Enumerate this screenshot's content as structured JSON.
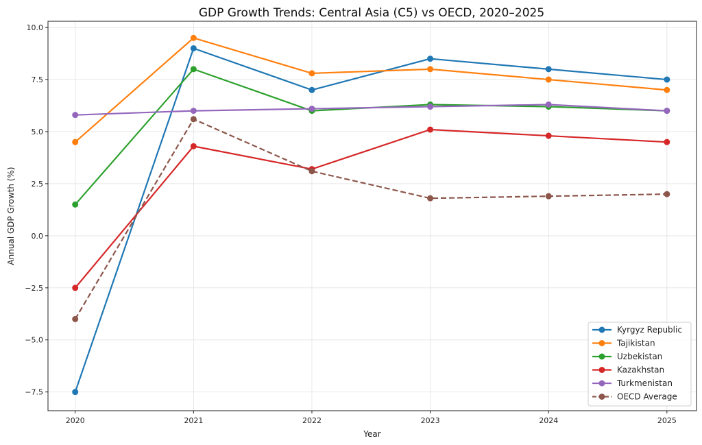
{
  "chart_data": {
    "type": "line",
    "title": "GDP Growth Trends: Central Asia (C5) vs OECD, 2020–2025",
    "xlabel": "Year",
    "ylabel": "Annual GDP Growth (%)",
    "x": [
      2020,
      2021,
      2022,
      2023,
      2024,
      2025
    ],
    "x_tick_labels": [
      "2020",
      "2021",
      "2022",
      "2023",
      "2024",
      "2025"
    ],
    "y_ticks": [
      -7.5,
      -5.0,
      -2.5,
      0.0,
      2.5,
      5.0,
      7.5,
      10.0
    ],
    "y_tick_labels": [
      "−7.5",
      "−5.0",
      "−2.5",
      "0.0",
      "2.5",
      "5.0",
      "7.5",
      "10.0"
    ],
    "ylim": [
      -8.4,
      10.3
    ],
    "xlim": [
      2019.77,
      2025.25
    ],
    "grid": true,
    "legend_position": "bottom-right",
    "series": [
      {
        "name": "Kyrgyz Republic",
        "color": "#1f77b4",
        "dashed": false,
        "values": [
          -7.5,
          9.0,
          7.0,
          8.5,
          8.0,
          7.5
        ]
      },
      {
        "name": "Tajikistan",
        "color": "#ff7f0e",
        "dashed": false,
        "values": [
          4.5,
          9.5,
          7.8,
          8.0,
          7.5,
          7.0
        ]
      },
      {
        "name": "Uzbekistan",
        "color": "#2ca02c",
        "dashed": false,
        "values": [
          1.5,
          8.0,
          6.0,
          6.3,
          6.2,
          6.0
        ]
      },
      {
        "name": "Kazakhstan",
        "color": "#d62728",
        "dashed": false,
        "values": [
          -2.5,
          4.3,
          3.2,
          5.1,
          4.8,
          4.5
        ]
      },
      {
        "name": "Turkmenistan",
        "color": "#9467bd",
        "dashed": false,
        "values": [
          5.8,
          6.0,
          6.1,
          6.2,
          6.3,
          6.0
        ]
      },
      {
        "name": "OECD Average",
        "color": "#8c564b",
        "dashed": true,
        "values": [
          -4.0,
          5.6,
          3.1,
          1.8,
          1.9,
          2.0
        ]
      }
    ]
  }
}
